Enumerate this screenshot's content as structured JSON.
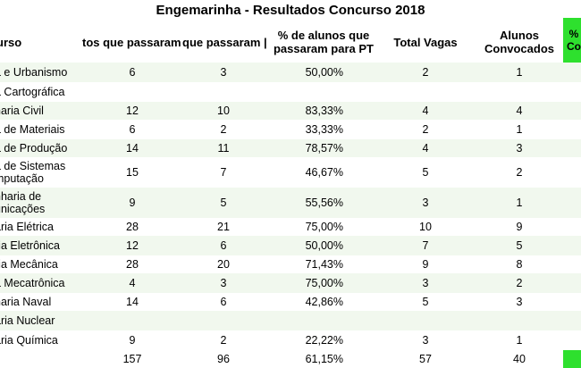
{
  "title": "Engemarinha - Resultados Concurso 2018",
  "headers": {
    "curso": "urso",
    "inscritos": "tos que passaram",
    "passaram": "que passaram |",
    "percent": "% de alunos que passaram para PT",
    "vagas": "Total Vagas",
    "convocados": "Alunos Convocados",
    "green_partial": "% Co"
  },
  "rows": [
    {
      "curso": "a e Urbanismo",
      "inscritos": "6",
      "passaram": "3",
      "percent": "50,00%",
      "vagas": "2",
      "convocados": "1"
    },
    {
      "curso": "a Cartográfica",
      "inscritos": "",
      "passaram": "",
      "percent": "",
      "vagas": "",
      "convocados": ""
    },
    {
      "curso": "haria Civil",
      "inscritos": "12",
      "passaram": "10",
      "percent": "83,33%",
      "vagas": "4",
      "convocados": "4"
    },
    {
      "curso": "a de Materiais",
      "inscritos": "6",
      "passaram": "2",
      "percent": "33,33%",
      "vagas": "2",
      "convocados": "1"
    },
    {
      "curso": "a de Produção",
      "inscritos": "14",
      "passaram": "11",
      "percent": "78,57%",
      "vagas": "4",
      "convocados": "3"
    },
    {
      "curso": "a de Sistemas mputação",
      "inscritos": "15",
      "passaram": "7",
      "percent": "46,67%",
      "vagas": "5",
      "convocados": "2"
    },
    {
      "curso": "nharia de unicações",
      "inscritos": "9",
      "passaram": "5",
      "percent": "55,56%",
      "vagas": "3",
      "convocados": "1"
    },
    {
      "curso": "aria Elétrica",
      "inscritos": "28",
      "passaram": "21",
      "percent": "75,00%",
      "vagas": "10",
      "convocados": "9"
    },
    {
      "curso": "ria Eletrônica",
      "inscritos": "12",
      "passaram": "6",
      "percent": "50,00%",
      "vagas": "7",
      "convocados": "5"
    },
    {
      "curso": "ria Mecânica",
      "inscritos": "28",
      "passaram": "20",
      "percent": "71,43%",
      "vagas": "9",
      "convocados": "8"
    },
    {
      "curso": "a Mecatrônica",
      "inscritos": "4",
      "passaram": "3",
      "percent": "75,00%",
      "vagas": "3",
      "convocados": "2"
    },
    {
      "curso": "haria Naval",
      "inscritos": "14",
      "passaram": "6",
      "percent": "42,86%",
      "vagas": "5",
      "convocados": "3"
    },
    {
      "curso": "aria Nuclear",
      "inscritos": "",
      "passaram": "",
      "percent": "",
      "vagas": "",
      "convocados": ""
    },
    {
      "curso": "aria Química",
      "inscritos": "9",
      "passaram": "2",
      "percent": "22,22%",
      "vagas": "3",
      "convocados": "1"
    }
  ],
  "totals": {
    "inscritos": "157",
    "passaram": "96",
    "percent": "61,15%",
    "vagas": "57",
    "convocados": "40"
  },
  "colors": {
    "green": "#2ee02e",
    "row_shade": "#f1f8ee"
  }
}
